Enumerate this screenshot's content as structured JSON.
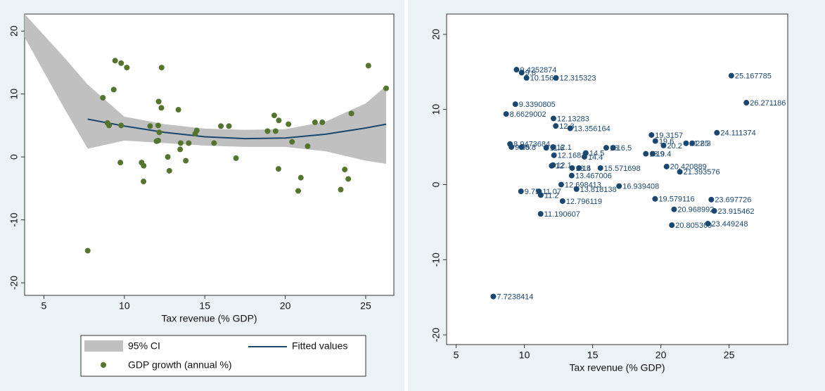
{
  "chart_data": [
    {
      "type": "scatter",
      "xlabel": "Tax revenue (% GDP)",
      "xlim": [
        3.8,
        26.75
      ],
      "ylim": [
        -22,
        22.7
      ],
      "xticks": [
        5,
        10,
        15,
        20,
        25
      ],
      "yticks": [
        -20,
        -10,
        0,
        10,
        20
      ],
      "ci": {
        "name": "95% CI",
        "color": "#c0c0c0",
        "x": [
          3.8,
          6.2,
          7.72,
          10,
          12.5,
          15,
          17.5,
          20,
          22.5,
          25,
          26.27
        ],
        "upper": [
          22.7,
          16,
          11.5,
          6.4,
          5.2,
          4.5,
          4.3,
          4.4,
          5.6,
          8.5,
          11.3
        ],
        "lower": [
          19,
          8,
          1.3,
          2.6,
          2.2,
          1.8,
          1.6,
          1.6,
          0.9,
          -0.6,
          -1.1
        ]
      },
      "fit": {
        "name": "Fitted values",
        "color": "#1a476f",
        "x": [
          7.72,
          10,
          12.5,
          15,
          17.5,
          20,
          22.5,
          25,
          26.27
        ],
        "values": [
          6.0,
          4.9,
          3.9,
          3.2,
          2.9,
          3.0,
          3.6,
          4.6,
          5.2
        ]
      },
      "series": [
        {
          "name": "GDP growth (annual %)",
          "color": "#55752f",
          "x": [
            9.4252874,
            9.8,
            10.1562,
            12.315323,
            25.167785,
            26.271186,
            9.3390805,
            8.6629002,
            12.13283,
            12.3,
            13.356164,
            19.3157,
            24.111374,
            8.9473684,
            9.05,
            9.8,
            11.6,
            12.1,
            19.6,
            20.2,
            21.85,
            22.3,
            16.0,
            16.5,
            14.5,
            14.4,
            12.1681,
            18.9,
            19.4,
            12.0,
            12.1,
            13.5,
            14.0,
            15.571698,
            20.420889,
            21.393576,
            13.467006,
            12.698413,
            9.75,
            11.07,
            11.2,
            13.818138,
            16.939408,
            12.796119,
            19.579116,
            23.697726,
            20.968992,
            23.915462,
            11.190607,
            20.805369,
            23.449248,
            7.7238414
          ],
          "values": [
            15.3,
            14.9,
            14.2,
            14.2,
            14.5,
            10.9,
            10.7,
            9.4,
            8.8,
            7.8,
            7.5,
            6.6,
            6.9,
            5.4,
            5.0,
            5.0,
            4.9,
            5.0,
            5.8,
            5.2,
            5.5,
            5.5,
            4.9,
            4.9,
            4.2,
            3.7,
            3.9,
            4.1,
            4.1,
            2.5,
            2.6,
            2.2,
            2.2,
            2.2,
            2.4,
            1.7,
            1.2,
            0.0,
            -0.9,
            -0.9,
            -1.4,
            -0.6,
            -0.2,
            -2.2,
            -1.9,
            -2.0,
            -3.3,
            -3.5,
            -3.9,
            -5.4,
            -5.2,
            -14.9
          ]
        }
      ]
    },
    {
      "type": "scatter",
      "xlabel": "Tax revenue (% GDP)",
      "point_labels": true,
      "xlim": [
        4.3,
        29.3
      ],
      "ylim": [
        -21.3,
        22.7
      ],
      "xticks": [
        5,
        10,
        15,
        20,
        25
      ],
      "yticks": [
        -20,
        -10,
        0,
        10,
        20
      ],
      "series": [
        {
          "color": "#1a476f",
          "x": [
            9.4252874,
            9.8,
            10.1562,
            12.315323,
            25.167785,
            26.271186,
            9.3390805,
            8.6629002,
            12.13283,
            12.3,
            13.356164,
            19.3157,
            24.111374,
            8.9473684,
            9.05,
            9.8,
            11.6,
            12.1,
            19.6,
            20.2,
            21.85,
            22.3,
            16.0,
            16.5,
            14.5,
            14.4,
            12.1681,
            18.9,
            19.4,
            12.0,
            12.1,
            13.5,
            14.0,
            15.571698,
            20.420889,
            21.393576,
            13.467006,
            12.698413,
            9.75,
            11.07,
            11.2,
            13.818138,
            16.939408,
            12.796119,
            19.579116,
            23.697726,
            20.968992,
            23.915462,
            11.190607,
            20.805369,
            23.449248,
            7.7238414
          ],
          "values": [
            15.3,
            14.9,
            14.2,
            14.2,
            14.5,
            10.9,
            10.7,
            9.4,
            8.8,
            7.8,
            7.5,
            6.6,
            6.9,
            5.4,
            5.0,
            5.0,
            4.9,
            5.0,
            5.8,
            5.2,
            5.5,
            5.5,
            4.9,
            4.9,
            4.2,
            3.7,
            3.9,
            4.1,
            4.1,
            2.5,
            2.6,
            2.2,
            2.2,
            2.2,
            2.4,
            1.7,
            1.2,
            0.0,
            -0.9,
            -0.9,
            -1.4,
            -0.6,
            -0.2,
            -2.2,
            -1.9,
            -2.0,
            -3.3,
            -3.5,
            -3.9,
            -5.4,
            -5.2,
            -14.9
          ]
        }
      ]
    }
  ]
}
